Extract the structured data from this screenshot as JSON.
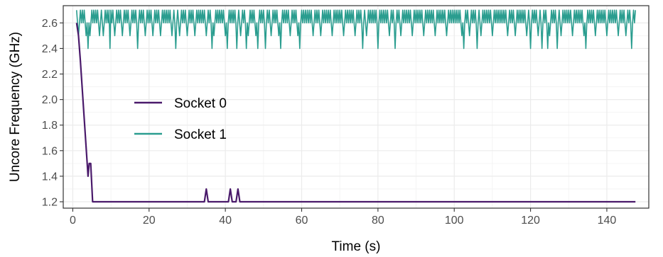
{
  "chart_data": {
    "type": "line",
    "xlabel": "Time (s)",
    "ylabel": "Uncore Frequency (GHz)",
    "xlim": [
      -2.5,
      151
    ],
    "ylim": [
      1.15,
      2.735
    ],
    "x_ticks": [
      0,
      20,
      40,
      60,
      80,
      100,
      120,
      140
    ],
    "y_ticks": [
      1.2,
      1.4,
      1.6,
      1.8,
      2.0,
      2.2,
      2.4,
      2.6
    ],
    "x_tick_labels": [
      "0",
      "20",
      "40",
      "60",
      "80",
      "100",
      "120",
      "140"
    ],
    "y_tick_labels": [
      "1.2",
      "1.4",
      "1.6",
      "1.8",
      "2.0",
      "2.2",
      "2.4",
      "2.6"
    ],
    "grid": true,
    "legend_position": "center-left inside plot",
    "series": [
      {
        "name": "Socket 0",
        "color": "#4a1a6b",
        "points": [
          [
            1,
            2.6
          ],
          [
            1.5,
            2.5
          ],
          [
            2,
            2.3
          ],
          [
            3,
            1.85
          ],
          [
            4,
            1.4
          ],
          [
            4.3,
            1.5
          ],
          [
            4.7,
            1.5
          ],
          [
            5.2,
            1.2
          ],
          [
            34.5,
            1.2
          ],
          [
            35,
            1.3
          ],
          [
            35.5,
            1.2
          ],
          [
            40.8,
            1.2
          ],
          [
            41.3,
            1.3
          ],
          [
            41.8,
            1.2
          ],
          [
            42.8,
            1.2
          ],
          [
            43.3,
            1.3
          ],
          [
            43.8,
            1.2
          ],
          [
            147.5,
            1.2
          ]
        ]
      },
      {
        "name": "Socket 1",
        "color": "#2a9d8f",
        "baseline_ghz": 2.6,
        "spike_high_ghz": 2.7,
        "x_range": [
          1,
          147.5
        ],
        "dips_to_2_5": [
          1.5,
          3.5,
          4.5,
          7,
          8,
          11,
          13,
          15,
          19,
          21,
          23,
          26,
          28,
          30,
          32,
          35,
          37,
          40,
          44,
          46,
          48,
          52,
          54,
          57,
          59,
          63,
          65,
          68,
          71,
          74,
          77,
          80,
          83,
          86,
          89,
          92,
          95,
          98,
          102,
          104,
          107,
          110,
          114,
          116,
          119,
          122,
          125,
          128,
          131,
          134,
          137,
          140,
          143,
          145
        ],
        "dips_to_2_4": [
          4,
          9.8,
          17,
          27,
          36.5,
          40.5,
          43,
          45.5,
          48.5,
          50.5,
          54.5,
          59.5,
          76,
          80,
          84.5,
          102.5,
          106,
          120,
          123,
          124.5,
          127,
          134.5,
          146.5
        ]
      }
    ]
  }
}
